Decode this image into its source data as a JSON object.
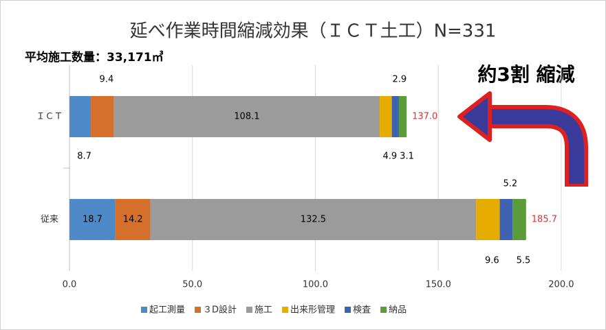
{
  "chart_data": {
    "type": "stacked_barh",
    "title": "延べ作業時間縮減効果（ＩＣＴ土工）N=331",
    "subtitle": "平均施工数量：33,171㎥",
    "annotation": "約3割 縮減",
    "categories": [
      "ＩＣＴ",
      "従来"
    ],
    "series": [
      {
        "name": "起工測量",
        "color": "#4e8ac8",
        "values": [
          8.7,
          18.7
        ]
      },
      {
        "name": "３D設計",
        "color": "#d4702b",
        "values": [
          9.4,
          14.2
        ]
      },
      {
        "name": "施工",
        "color": "#9b9b9b",
        "values": [
          108.1,
          132.5
        ]
      },
      {
        "name": "出来形管理",
        "color": "#e6ac00",
        "values": [
          4.9,
          9.6
        ]
      },
      {
        "name": "検査",
        "color": "#3d62b0",
        "values": [
          2.9,
          5.2
        ]
      },
      {
        "name": "納品",
        "color": "#5b9b3a",
        "values": [
          3.1,
          5.5
        ]
      }
    ],
    "totals": [
      137.0,
      185.7
    ],
    "total_labels": [
      "137.0",
      "185.7"
    ],
    "total_color": "#e03030",
    "xlim": [
      0,
      208.7
    ],
    "xticks": [
      {
        "value": 0,
        "label": "0.0"
      },
      {
        "value": 50,
        "label": "50.0"
      },
      {
        "value": 100,
        "label": "100.0"
      },
      {
        "value": 150,
        "label": "150.0"
      },
      {
        "value": 200,
        "label": "200.0"
      }
    ],
    "grid": true,
    "legend": "bottom"
  }
}
